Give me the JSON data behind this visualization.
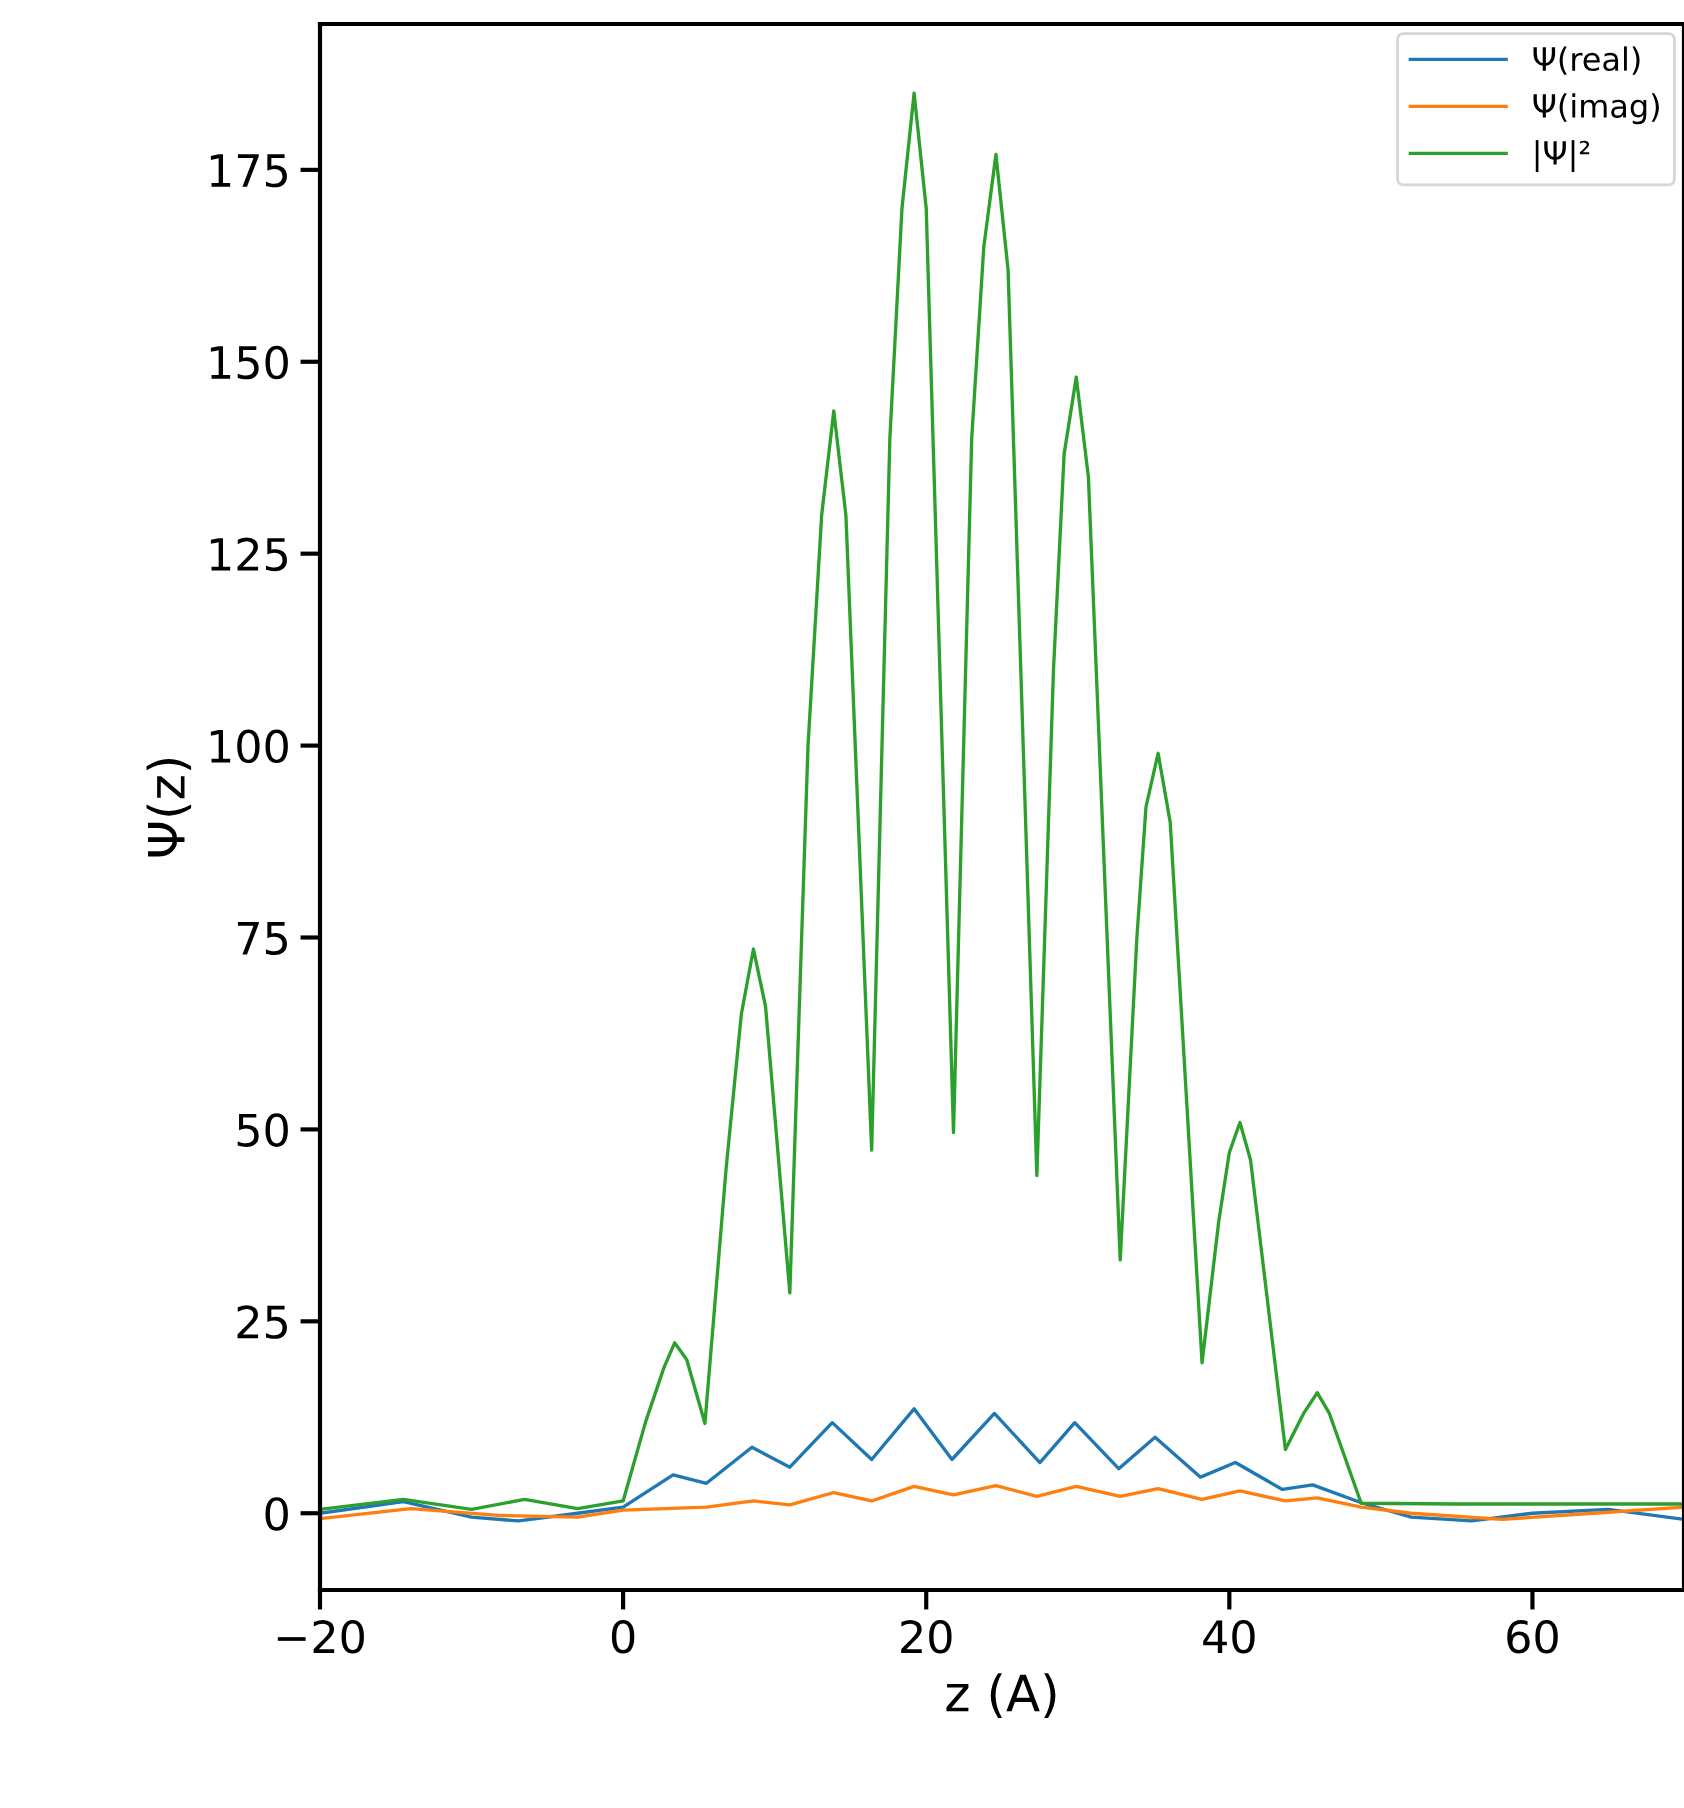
{
  "chart_data": {
    "type": "line",
    "xlabel": "z (A)",
    "ylabel": "Ψ(z)",
    "xlim": [
      -20,
      70
    ],
    "ylim": [
      -10,
      194
    ],
    "xticks": [
      {
        "value": -20,
        "label": "−20"
      },
      0,
      20,
      40,
      60
    ],
    "yticks": [
      0,
      25,
      50,
      75,
      100,
      125,
      150,
      175
    ],
    "grid": false,
    "legend": "top right",
    "marker": "none",
    "line_style": "solid",
    "series": [
      {
        "name": "Ψ(real)",
        "color": "#1f77b4",
        "x": [
          -20,
          -14.5,
          -10,
          -6.9,
          -3,
          0,
          3.3,
          5.5,
          8.5,
          11,
          13.8,
          16.4,
          19.2,
          21.7,
          24.5,
          27.5,
          29.8,
          32.7,
          35.1,
          38.1,
          40.4,
          43.5,
          45.5,
          48.8,
          52,
          56,
          60,
          65,
          70
        ],
        "values": [
          0,
          1.5,
          -0.5,
          -1,
          0,
          0.8,
          5,
          3.9,
          8.6,
          6,
          11.8,
          7,
          13.6,
          7,
          13,
          6.6,
          11.8,
          5.8,
          9.9,
          4.7,
          6.6,
          3.1,
          3.7,
          1.3,
          -0.5,
          -1,
          0,
          0.5,
          -0.8
        ]
      },
      {
        "name": "Ψ(imag)",
        "color": "#ff7f0e",
        "x": [
          -20,
          -14,
          -8,
          -3,
          0,
          5.5,
          8.6,
          11,
          13.9,
          16.4,
          19.2,
          21.8,
          24.6,
          27.3,
          29.9,
          32.8,
          35.3,
          38.2,
          40.7,
          43.7,
          45.8,
          48.7,
          52,
          58,
          64,
          70
        ],
        "values": [
          -0.7,
          0.6,
          -0.3,
          -0.5,
          0.4,
          0.8,
          1.6,
          1.1,
          2.7,
          1.6,
          3.5,
          2.4,
          3.6,
          2.2,
          3.5,
          2.2,
          3.2,
          1.8,
          2.9,
          1.6,
          2,
          0.8,
          0,
          -0.8,
          0,
          0.8
        ]
      },
      {
        "name": "|Ψ|²",
        "color": "#2ca02c",
        "x": [
          -20,
          -14.5,
          -10,
          -6.5,
          -3,
          0,
          1.5,
          2.7,
          3.4,
          4.2,
          5.4,
          6.8,
          7.8,
          8.6,
          9.4,
          11,
          12.2,
          13.1,
          13.9,
          14.7,
          16.4,
          17.6,
          18.4,
          19.2,
          20,
          21.8,
          23,
          23.8,
          24.6,
          25.4,
          27.3,
          28.4,
          29.1,
          29.9,
          30.7,
          32.8,
          33.9,
          34.5,
          35.3,
          36.1,
          38.2,
          39.3,
          40,
          40.7,
          41.4,
          43.7,
          44.9,
          45.8,
          46.6,
          48.7,
          55,
          62,
          70
        ],
        "values": [
          0.5,
          1.8,
          0.5,
          1.8,
          0.6,
          1.6,
          12,
          19,
          22.2,
          20,
          11.7,
          45,
          65,
          73.5,
          66,
          28.7,
          100,
          130,
          143.6,
          130,
          47.3,
          140,
          170,
          185,
          170,
          49.6,
          140,
          165,
          177,
          162,
          44,
          110,
          138,
          148,
          135,
          33,
          75,
          92,
          99,
          90,
          19.6,
          38,
          47,
          50.9,
          46,
          8.3,
          13,
          15.7,
          13,
          1.3,
          1.2,
          1.2,
          1.2
        ]
      }
    ]
  }
}
